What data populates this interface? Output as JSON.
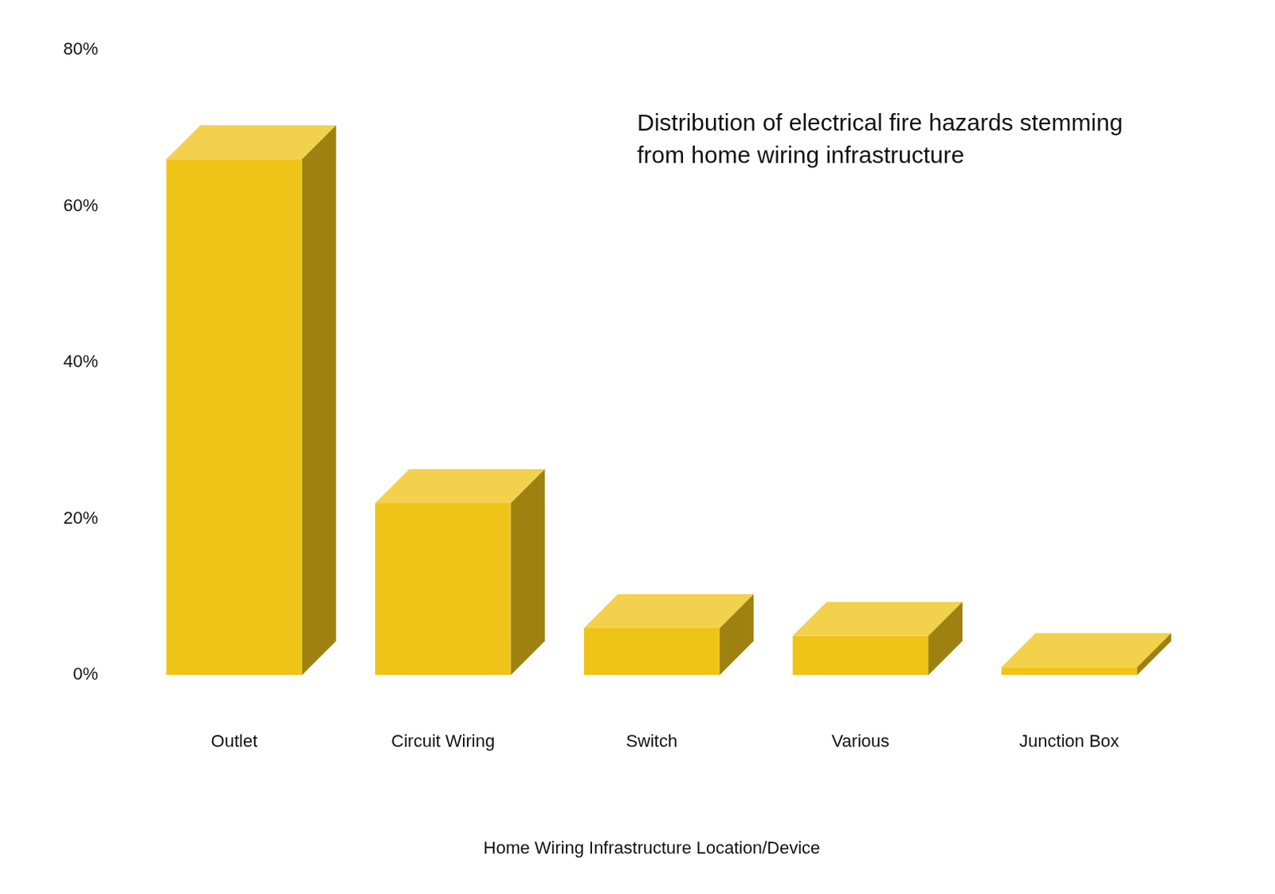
{
  "chart_data": {
    "type": "bar",
    "title": "Distribution of electrical fire hazards stemming from home wiring infrastructure",
    "x_label": "Home Wiring Infrastructure Location/Device",
    "categories": [
      "Outlet",
      "Circuit Wiring",
      "Switch",
      "Various",
      "Junction Box"
    ],
    "values": [
      66,
      22,
      6,
      5,
      1
    ],
    "color": "#efc419",
    "ylim": [
      0,
      80
    ],
    "yticks": [
      {
        "value": 0,
        "label": "0%"
      },
      {
        "value": 20,
        "label": "20%"
      },
      {
        "value": 40,
        "label": "40%"
      },
      {
        "value": 60,
        "label": "60%"
      },
      {
        "value": 80,
        "label": "80%"
      }
    ],
    "grid": false
  }
}
